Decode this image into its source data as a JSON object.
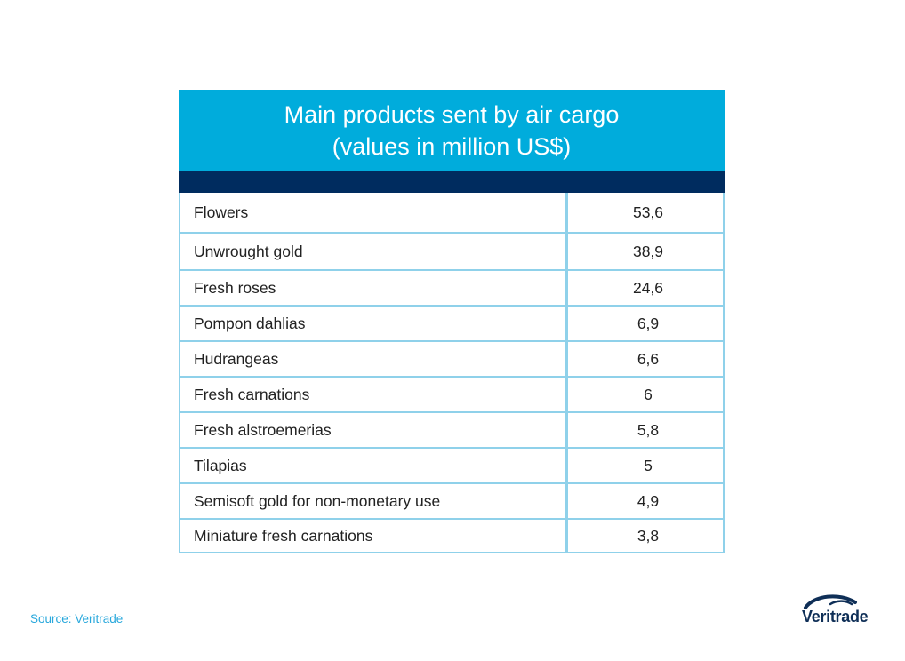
{
  "chart_data": {
    "type": "table",
    "title_lines": [
      "Main products sent by air cargo",
      "(values in million US$)"
    ],
    "rows": [
      {
        "product": "Flowers",
        "value": "53,6"
      },
      {
        "product": "Unwrought gold",
        "value": "38,9"
      },
      {
        "product": "Fresh roses",
        "value": "24,6"
      },
      {
        "product": "Pompon dahlias",
        "value": "6,9"
      },
      {
        "product": "Hudrangeas",
        "value": "6,6"
      },
      {
        "product": "Fresh carnations",
        "value": "6"
      },
      {
        "product": "Fresh alstroemerias",
        "value": "5,8"
      },
      {
        "product": "Tilapias",
        "value": "5"
      },
      {
        "product": "Semisoft gold for non-monetary use",
        "value": "4,9"
      },
      {
        "product": "Miniature fresh carnations",
        "value": "3,8"
      }
    ]
  },
  "source": "Source: Veritrade",
  "logo": {
    "text": "Veritrade",
    "icon": "veritrade-swoosh-icon"
  },
  "colors": {
    "title_band": "#00ACDC",
    "dark_band": "#002C5F",
    "grid": "#8FD1EA",
    "logo": "#0F2F57",
    "source_text": "#29A8DC"
  }
}
